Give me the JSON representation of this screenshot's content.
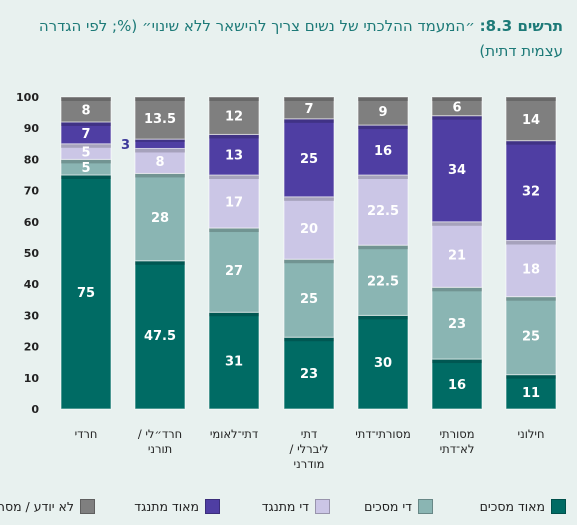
{
  "title": {
    "label": "תרשים 8.3:",
    "text": "״המעמד ההלכתי של נשים צריך להישאר ללא שינוי״ (%; לפי הגדרה עצמית דתית)"
  },
  "chart_data": {
    "type": "bar",
    "stacked": true,
    "ylim": [
      0,
      100
    ],
    "yticks": [
      0,
      10,
      20,
      30,
      40,
      50,
      60,
      70,
      80,
      90,
      100
    ],
    "categories": [
      [
        "חרדי"
      ],
      [
        "חרד״לי /",
        "תורני"
      ],
      [
        "דתי־לאומי"
      ],
      [
        "דתי",
        "ליברלי /",
        "מודרני"
      ],
      [
        "מסורתי־דתי"
      ],
      [
        "מסורתי",
        "לא־דתי"
      ],
      [
        "חילוני"
      ]
    ],
    "series": [
      {
        "name": "מאוד מסכים",
        "color": "#006b64",
        "label_color": "#ffffff",
        "values": [
          75,
          47.5,
          31,
          23,
          30,
          16,
          11
        ]
      },
      {
        "name": "די מסכים",
        "color": "#8ab5b3",
        "label_color": "#ffffff",
        "values": [
          5,
          28,
          27,
          25,
          22.5,
          23,
          25
        ]
      },
      {
        "name": "די מתנגד",
        "color": "#cbc6e6",
        "label_color": "#ffffff",
        "values": [
          5,
          8,
          17,
          20,
          22.5,
          21,
          18
        ]
      },
      {
        "name": "מאוד מתנגד",
        "color": "#4f3ea3",
        "label_color": "#ffffff",
        "values": [
          7,
          3,
          13,
          25,
          16,
          34,
          32
        ]
      },
      {
        "name": "לא יודע / מסרב",
        "color": "#7f7f7f",
        "label_color": "#ffffff",
        "values": [
          8,
          13.5,
          12,
          7,
          9,
          6,
          14
        ]
      }
    ],
    "external_labels": [
      {
        "category_index": 1,
        "series_index": 3
      }
    ],
    "legend_position": "bottom",
    "grid": false
  }
}
